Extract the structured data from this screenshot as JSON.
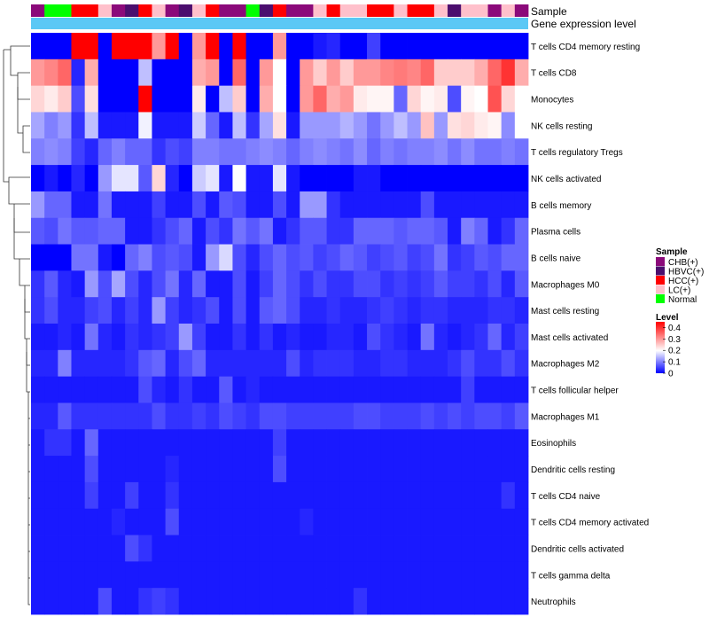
{
  "chart_data": {
    "type": "heatmap",
    "annotation_labels": {
      "sample": "Sample",
      "gene": "Gene expression level"
    },
    "legend": {
      "sample_title": "Sample",
      "groups": [
        {
          "name": "CHB(+)",
          "color": "#8b0a7a"
        },
        {
          "name": "HBVC(+)",
          "color": "#4b0e6e"
        },
        {
          "name": "HCC(+)",
          "color": "#ff0000"
        },
        {
          "name": "LC(+)",
          "color": "#ffc0cb"
        },
        {
          "name": "Normal",
          "color": "#00ff00"
        }
      ],
      "level_title": "Level",
      "level_ticks": [
        "0.4",
        "0.3",
        "0.2",
        "0.1",
        "0"
      ],
      "level_range": [
        0,
        0.45
      ],
      "colors": {
        "low": "#0000ff",
        "mid": "#ffffff",
        "high": "#ff0000",
        "mid_value": 0.2
      }
    },
    "gene_bar_color": "#5bc8f5",
    "sample_groups": [
      "CHB(+)",
      "Normal",
      "Normal",
      "HCC(+)",
      "HCC(+)",
      "LC(+)",
      "CHB(+)",
      "HBVC(+)",
      "HCC(+)",
      "LC(+)",
      "CHB(+)",
      "HBVC(+)",
      "LC(+)",
      "HCC(+)",
      "CHB(+)",
      "CHB(+)",
      "Normal",
      "HBVC(+)",
      "HCC(+)",
      "CHB(+)",
      "CHB(+)",
      "LC(+)",
      "HCC(+)",
      "LC(+)",
      "LC(+)",
      "HCC(+)",
      "HCC(+)",
      "LC(+)",
      "HCC(+)",
      "HCC(+)",
      "LC(+)",
      "HBVC(+)",
      "LC(+)",
      "LC(+)",
      "CHB(+)",
      "LC(+)",
      "CHB(+)"
    ],
    "rows": [
      {
        "label": "T cells CD4 memory resting",
        "values": [
          0,
          0,
          0,
          0.45,
          0.45,
          0,
          0.45,
          0.45,
          0.45,
          0.3,
          0.45,
          0,
          0.3,
          0.45,
          0,
          0.45,
          0,
          0,
          0.3,
          0,
          0,
          0.02,
          0.03,
          0,
          0,
          0.05,
          0,
          0,
          0,
          0,
          0,
          0,
          0,
          0,
          0,
          0,
          0
        ]
      },
      {
        "label": "T cells CD8",
        "values": [
          0.3,
          0.32,
          0.35,
          0.03,
          0.28,
          0,
          0,
          0,
          0.15,
          0,
          0,
          0,
          0.28,
          0.3,
          0,
          0.35,
          0,
          0.3,
          0.2,
          0,
          0.3,
          0.25,
          0.3,
          0.25,
          0.3,
          0.3,
          0.32,
          0.33,
          0.32,
          0.35,
          0.25,
          0.25,
          0.25,
          0.28,
          0.35,
          0.4,
          0.28
        ]
      },
      {
        "label": "Monocytes",
        "values": [
          0.24,
          0.22,
          0.25,
          0.06,
          0.23,
          0,
          0,
          0,
          0.45,
          0,
          0,
          0,
          0.22,
          0,
          0.15,
          0.25,
          0,
          0.28,
          0.2,
          0,
          0.3,
          0.35,
          0.28,
          0.3,
          0.22,
          0.21,
          0.21,
          0.08,
          0.24,
          0.21,
          0.22,
          0.06,
          0.21,
          0.2,
          0.37,
          0.24,
          0.2
        ]
      },
      {
        "label": "NK cells resting",
        "values": [
          0.13,
          0.1,
          0.12,
          0.04,
          0.15,
          0.02,
          0.02,
          0.02,
          0.19,
          0.02,
          0.02,
          0.02,
          0.16,
          0.08,
          0.02,
          0.15,
          0.04,
          0.13,
          0.23,
          0.02,
          0.12,
          0.12,
          0.12,
          0.14,
          0.12,
          0.09,
          0.12,
          0.15,
          0.12,
          0.26,
          0.12,
          0.23,
          0.24,
          0.22,
          0.21,
          0.11,
          0.2
        ]
      },
      {
        "label": "T cells regulatory  Tregs",
        "values": [
          0.1,
          0.11,
          0.1,
          0.05,
          0.03,
          0.08,
          0.1,
          0.08,
          0.08,
          0.04,
          0.06,
          0.05,
          0.1,
          0.1,
          0.09,
          0.09,
          0.1,
          0.11,
          0.1,
          0.08,
          0.1,
          0.11,
          0.1,
          0.09,
          0.11,
          0.08,
          0.1,
          0.09,
          0.1,
          0.1,
          0.11,
          0.09,
          0.11,
          0.09,
          0.09,
          0.1,
          0.09
        ]
      },
      {
        "label": "NK cells activated",
        "values": [
          0,
          0.02,
          0,
          0.03,
          0,
          0.12,
          0.18,
          0.18,
          0.07,
          0.24,
          0.03,
          0,
          0.16,
          0.18,
          0.02,
          0.2,
          0.02,
          0.02,
          0.18,
          0.02,
          0,
          0,
          0,
          0,
          0.02,
          0.02,
          0,
          0,
          0,
          0,
          0,
          0,
          0,
          0,
          0,
          0,
          0
        ]
      },
      {
        "label": "B cells memory",
        "values": [
          0.12,
          0.08,
          0.08,
          0.02,
          0.02,
          0.09,
          0.02,
          0.02,
          0.02,
          0.05,
          0.02,
          0.02,
          0.06,
          0.02,
          0.07,
          0.06,
          0.02,
          0.02,
          0.06,
          0.02,
          0.12,
          0.12,
          0.04,
          0.02,
          0.02,
          0.02,
          0.02,
          0.02,
          0.02,
          0.06,
          0.02,
          0.02,
          0.02,
          0.02,
          0.02,
          0.02,
          0.02
        ]
      },
      {
        "label": "Plasma cells",
        "values": [
          0.07,
          0.06,
          0.09,
          0.07,
          0.07,
          0.08,
          0.08,
          0.02,
          0.02,
          0.04,
          0.06,
          0.08,
          0.02,
          0.06,
          0.04,
          0.09,
          0.07,
          0.09,
          0.02,
          0.04,
          0.07,
          0.07,
          0.04,
          0.04,
          0.08,
          0.08,
          0.08,
          0.07,
          0.08,
          0.08,
          0.07,
          0.02,
          0.1,
          0.08,
          0.02,
          0.04,
          0.08
        ]
      },
      {
        "label": "B cells naive",
        "values": [
          0,
          0,
          0,
          0.09,
          0.09,
          0.02,
          0,
          0.08,
          0.1,
          0.06,
          0.07,
          0.06,
          0.02,
          0.12,
          0.17,
          0.06,
          0.03,
          0.06,
          0.08,
          0.06,
          0.07,
          0.05,
          0.06,
          0.08,
          0.07,
          0.05,
          0.06,
          0.07,
          0.05,
          0.06,
          0.09,
          0.04,
          0.05,
          0.07,
          0.06,
          0.08,
          0.08
        ]
      },
      {
        "label": "Macrophages M0",
        "values": [
          0.04,
          0.07,
          0.03,
          0.02,
          0.12,
          0.06,
          0.13,
          0.06,
          0.03,
          0.06,
          0.09,
          0.03,
          0.08,
          0.02,
          0.02,
          0.06,
          0.02,
          0.05,
          0.08,
          0.06,
          0.04,
          0.06,
          0.04,
          0.04,
          0.06,
          0.06,
          0.04,
          0.05,
          0.04,
          0.05,
          0.07,
          0.05,
          0.05,
          0.04,
          0.06,
          0.03,
          0.07
        ]
      },
      {
        "label": "Mast cells resting",
        "values": [
          0.04,
          0.06,
          0.03,
          0.03,
          0.05,
          0.06,
          0.03,
          0.05,
          0.03,
          0.12,
          0.05,
          0.03,
          0.04,
          0.06,
          0.02,
          0.06,
          0.02,
          0.07,
          0.08,
          0.06,
          0.03,
          0.03,
          0.04,
          0.03,
          0.03,
          0.04,
          0.05,
          0.04,
          0.03,
          0.04,
          0.04,
          0.03,
          0.03,
          0.03,
          0.04,
          0.04,
          0.03
        ]
      },
      {
        "label": "Mast cells activated",
        "values": [
          0.02,
          0.02,
          0.03,
          0.02,
          0.09,
          0.03,
          0.02,
          0.04,
          0.03,
          0.04,
          0.05,
          0.12,
          0.05,
          0.02,
          0.02,
          0.04,
          0.02,
          0.04,
          0.02,
          0.03,
          0.02,
          0.02,
          0.03,
          0.03,
          0.02,
          0.06,
          0.04,
          0.03,
          0.02,
          0.09,
          0.03,
          0.02,
          0.03,
          0.04,
          0.08,
          0.03,
          0.05
        ]
      },
      {
        "label": "Macrophages M2",
        "values": [
          0.03,
          0.03,
          0.1,
          0.03,
          0.03,
          0.03,
          0.03,
          0.04,
          0.07,
          0.08,
          0.03,
          0.06,
          0.08,
          0.03,
          0.03,
          0.03,
          0.03,
          0.03,
          0.03,
          0.06,
          0.03,
          0.04,
          0.04,
          0.04,
          0.03,
          0.03,
          0.04,
          0.04,
          0.03,
          0.03,
          0.03,
          0.04,
          0.06,
          0.04,
          0.04,
          0.06,
          0.04
        ]
      },
      {
        "label": "T cells follicular helper",
        "values": [
          0.02,
          0.02,
          0.02,
          0.02,
          0.02,
          0.02,
          0.02,
          0.02,
          0.06,
          0.03,
          0.02,
          0.04,
          0.02,
          0.02,
          0.07,
          0.02,
          0.03,
          0.02,
          0.02,
          0.02,
          0.02,
          0.02,
          0.02,
          0.02,
          0.02,
          0.02,
          0.02,
          0.02,
          0.02,
          0.02,
          0.02,
          0.02,
          0.05,
          0.02,
          0.02,
          0.02,
          0.02
        ]
      },
      {
        "label": "Macrophages M1",
        "values": [
          0.03,
          0.03,
          0.07,
          0.04,
          0.04,
          0.04,
          0.04,
          0.04,
          0.04,
          0.06,
          0.04,
          0.04,
          0.05,
          0.04,
          0.06,
          0.05,
          0.04,
          0.06,
          0.06,
          0.05,
          0.05,
          0.05,
          0.05,
          0.05,
          0.06,
          0.06,
          0.05,
          0.05,
          0.05,
          0.06,
          0.05,
          0.06,
          0.05,
          0.06,
          0.06,
          0.05,
          0.07
        ]
      },
      {
        "label": "Eosinophils",
        "values": [
          0.02,
          0.04,
          0.04,
          0.02,
          0.08,
          0.02,
          0.02,
          0.02,
          0.02,
          0.02,
          0.02,
          0.02,
          0.02,
          0.02,
          0.02,
          0.02,
          0.02,
          0.02,
          0.05,
          0.02,
          0.02,
          0.02,
          0.02,
          0.02,
          0.02,
          0.02,
          0.02,
          0.02,
          0.02,
          0.02,
          0.02,
          0.02,
          0.02,
          0.02,
          0.02,
          0.02,
          0.02
        ]
      },
      {
        "label": "Dendritic cells resting",
        "values": [
          0.02,
          0.02,
          0.02,
          0.02,
          0.06,
          0.02,
          0.02,
          0.02,
          0.02,
          0.02,
          0.03,
          0.02,
          0.02,
          0.02,
          0.02,
          0.02,
          0.02,
          0.02,
          0.06,
          0.02,
          0.02,
          0.02,
          0.02,
          0.02,
          0.02,
          0.02,
          0.02,
          0.02,
          0.02,
          0.02,
          0.02,
          0.02,
          0.02,
          0.02,
          0.02,
          0.02,
          0.02
        ]
      },
      {
        "label": "T cells CD4 naive",
        "values": [
          0.02,
          0.02,
          0.02,
          0.02,
          0.05,
          0.02,
          0.02,
          0.05,
          0.02,
          0.02,
          0.04,
          0.02,
          0.02,
          0.02,
          0.02,
          0.02,
          0.02,
          0.02,
          0.02,
          0.02,
          0.02,
          0.02,
          0.02,
          0.02,
          0.02,
          0.02,
          0.02,
          0.02,
          0.02,
          0.02,
          0.02,
          0.02,
          0.02,
          0.02,
          0.02,
          0.04,
          0.02
        ]
      },
      {
        "label": "T cells CD4 memory activated",
        "values": [
          0.02,
          0.02,
          0.02,
          0.02,
          0.02,
          0.02,
          0.03,
          0.02,
          0.02,
          0.02,
          0.06,
          0.02,
          0.02,
          0.02,
          0.02,
          0.02,
          0.02,
          0.02,
          0.02,
          0.02,
          0.03,
          0.02,
          0.02,
          0.02,
          0.02,
          0.02,
          0.02,
          0.02,
          0.02,
          0.02,
          0.02,
          0.02,
          0.02,
          0.02,
          0.02,
          0.02,
          0.02
        ]
      },
      {
        "label": "Dendritic cells activated",
        "values": [
          0.02,
          0.02,
          0.02,
          0.02,
          0.02,
          0.02,
          0.02,
          0.06,
          0.04,
          0.02,
          0.02,
          0.02,
          0.02,
          0.02,
          0.02,
          0.02,
          0.02,
          0.02,
          0.02,
          0.02,
          0.02,
          0.02,
          0.02,
          0.02,
          0.02,
          0.02,
          0.02,
          0.02,
          0.02,
          0.02,
          0.02,
          0.02,
          0.02,
          0.02,
          0.02,
          0.02,
          0.02
        ]
      },
      {
        "label": "T cells gamma delta",
        "values": [
          0.02,
          0.02,
          0.02,
          0.02,
          0.02,
          0.02,
          0.02,
          0.02,
          0.02,
          0.02,
          0.02,
          0.02,
          0.02,
          0.02,
          0.02,
          0.02,
          0.02,
          0.02,
          0.02,
          0.02,
          0.02,
          0.02,
          0.02,
          0.02,
          0.02,
          0.02,
          0.02,
          0.02,
          0.02,
          0.02,
          0.02,
          0.02,
          0.02,
          0.02,
          0.02,
          0.02,
          0.02
        ]
      },
      {
        "label": "Neutrophils",
        "values": [
          0.02,
          0.02,
          0.02,
          0.02,
          0.02,
          0.06,
          0.02,
          0.02,
          0.04,
          0.05,
          0.04,
          0.02,
          0.02,
          0.02,
          0.02,
          0.02,
          0.02,
          0.02,
          0.02,
          0.02,
          0.02,
          0.02,
          0.02,
          0.02,
          0.04,
          0.02,
          0.02,
          0.02,
          0.02,
          0.02,
          0.02,
          0.02,
          0.02,
          0.02,
          0.02,
          0.02,
          0.02
        ]
      }
    ]
  }
}
